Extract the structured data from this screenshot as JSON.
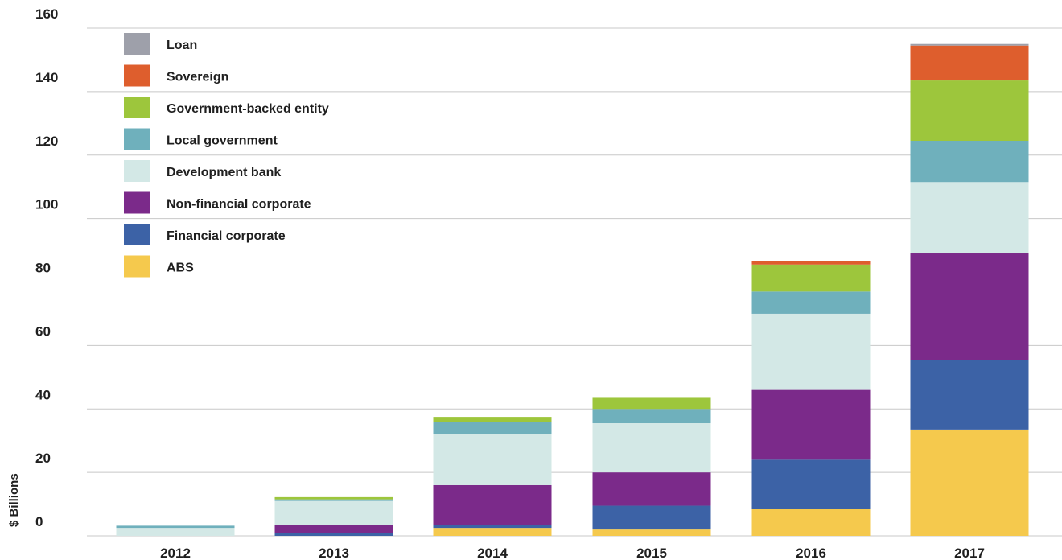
{
  "chart_data": {
    "type": "bar",
    "stacked": true,
    "ylabel": "$ Billions",
    "xlabel": "",
    "ylim": [
      0,
      160
    ],
    "yticks": [
      0,
      20,
      40,
      60,
      80,
      100,
      120,
      140,
      160
    ],
    "grid": true,
    "legend_position": "top-left",
    "categories": [
      "2012",
      "2013",
      "2014",
      "2015",
      "2016",
      "2017"
    ],
    "series": [
      {
        "name": "ABS",
        "color": "#f5c94d",
        "values": [
          0,
          0,
          2.5,
          2,
          8.5,
          33.5
        ]
      },
      {
        "name": "Financial corporate",
        "color": "#3c62a6",
        "values": [
          0,
          1,
          1,
          7.5,
          15.5,
          22
        ]
      },
      {
        "name": "Non-financial corporate",
        "color": "#7b2a8a",
        "values": [
          0,
          2.5,
          12.5,
          10.5,
          22,
          33.5
        ]
      },
      {
        "name": "Development bank",
        "color": "#d3e8e6",
        "values": [
          2.5,
          7.5,
          16,
          15.5,
          24,
          22.5
        ]
      },
      {
        "name": "Local government",
        "color": "#6fb0bc",
        "values": [
          0.7,
          0.5,
          4,
          4.5,
          7,
          13
        ]
      },
      {
        "name": "Government-backed entity",
        "color": "#9dc63c",
        "values": [
          0,
          0.7,
          1.5,
          3.5,
          8.5,
          19
        ]
      },
      {
        "name": "Sovereign",
        "color": "#de5e2d",
        "values": [
          0,
          0,
          0,
          0,
          1,
          11
        ]
      },
      {
        "name": "Loan",
        "color": "#9ea0aa",
        "values": [
          0,
          0,
          0,
          0,
          0,
          0.5
        ]
      }
    ],
    "legend_order": [
      "Loan",
      "Sovereign",
      "Government-backed entity",
      "Local government",
      "Development bank",
      "Non-financial corporate",
      "Financial corporate",
      "ABS"
    ]
  }
}
